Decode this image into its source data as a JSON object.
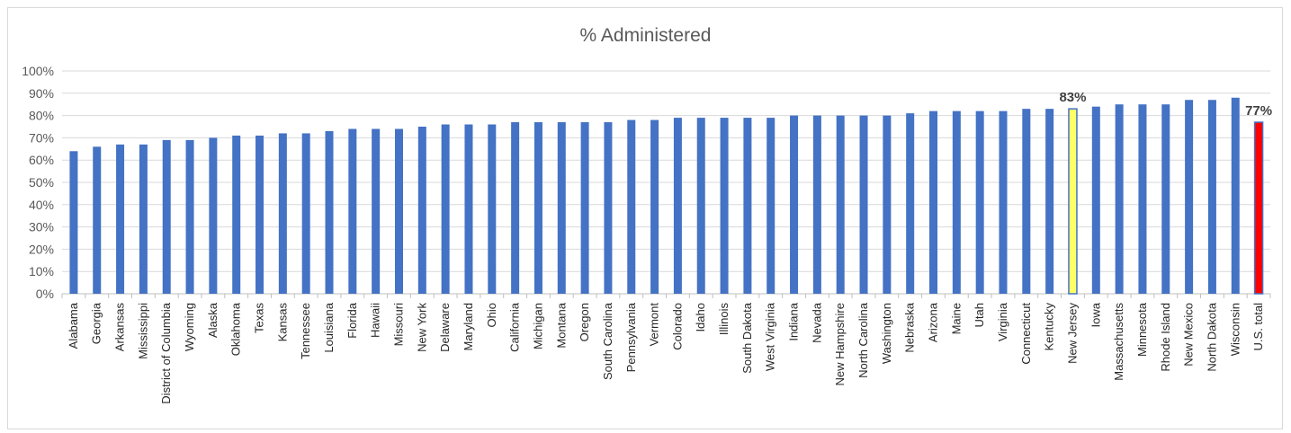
{
  "chart_data": {
    "type": "bar",
    "title": "% Administered",
    "xlabel": "",
    "ylabel": "",
    "ylim": [
      0,
      1
    ],
    "y_tick_labels": [
      "0%",
      "10%",
      "20%",
      "30%",
      "40%",
      "50%",
      "60%",
      "70%",
      "80%",
      "90%",
      "100%"
    ],
    "grid": true,
    "legend": "none",
    "categories": [
      "Alabama",
      "Georgia",
      "Arkansas",
      "Mississippi",
      "District of Columbia",
      "Wyoming",
      "Alaska",
      "Oklahoma",
      "Texas",
      "Kansas",
      "Tennessee",
      "Louisiana",
      "Florida",
      "Hawaii",
      "Missouri",
      "New York",
      "Delaware",
      "Maryland",
      "Ohio",
      "California",
      "Michigan",
      "Montana",
      "Oregon",
      "South Carolina",
      "Pennsylvania",
      "Vermont",
      "Colorado",
      "Idaho",
      "Illinois",
      "South Dakota",
      "West Virginia",
      "Indiana",
      "Nevada",
      "New Hampshire",
      "North Carolina",
      "Washington",
      "Nebraska",
      "Arizona",
      "Maine",
      "Utah",
      "Virginia",
      "Connecticut",
      "Kentucky",
      "New Jersey",
      "Iowa",
      "Massachusetts",
      "Minnesota",
      "Rhode Island",
      "New Mexico",
      "North Dakota",
      "Wisconsin",
      "U.S. total"
    ],
    "values": [
      0.64,
      0.66,
      0.67,
      0.67,
      0.69,
      0.69,
      0.7,
      0.71,
      0.71,
      0.72,
      0.72,
      0.73,
      0.74,
      0.74,
      0.74,
      0.75,
      0.76,
      0.76,
      0.76,
      0.77,
      0.77,
      0.77,
      0.77,
      0.77,
      0.78,
      0.78,
      0.79,
      0.79,
      0.79,
      0.79,
      0.79,
      0.8,
      0.8,
      0.8,
      0.8,
      0.8,
      0.81,
      0.82,
      0.82,
      0.82,
      0.82,
      0.83,
      0.83,
      0.83,
      0.84,
      0.85,
      0.85,
      0.85,
      0.87,
      0.87,
      0.88,
      0.77
    ],
    "colors": {
      "default": "#4472c4",
      "highlight_new_jersey": "#ffff66",
      "highlight_us_total": "#ff0000",
      "highlight_border": "#4472c4",
      "grid": "#d9d9d9",
      "axis": "#bfbfbf"
    },
    "highlights": [
      {
        "category": "New Jersey",
        "color": "#ffff66",
        "label": "83%"
      },
      {
        "category": "U.S. total",
        "color": "#ff0000",
        "label": "77%"
      }
    ]
  }
}
